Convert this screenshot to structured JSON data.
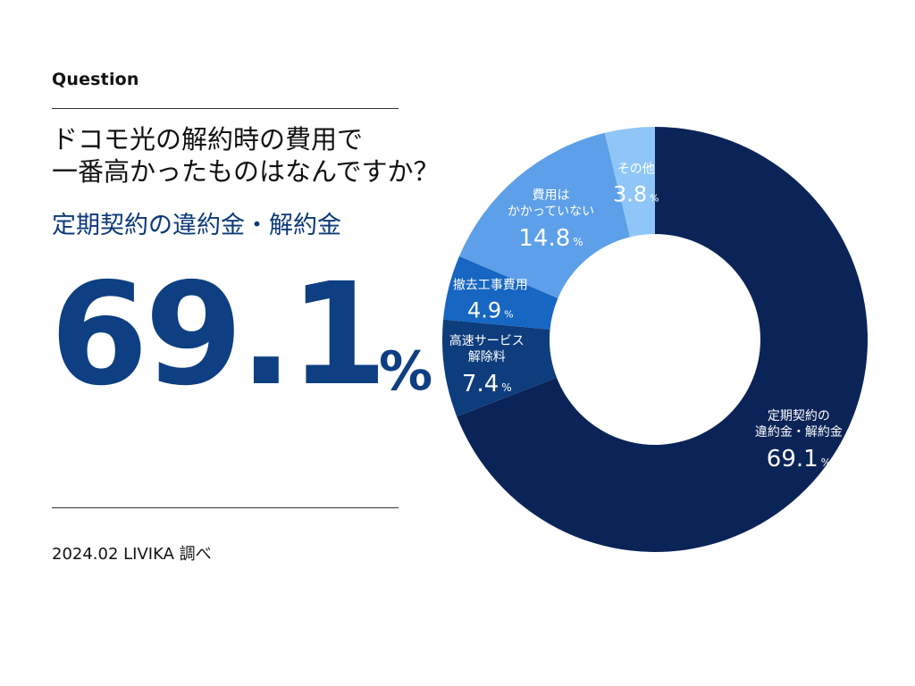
{
  "header": {
    "label": "Question",
    "question_line1": "ドコモ光の解約時の費用で",
    "question_line2": "一番高かったものはなんですか？",
    "answer_title": "定期契約の違約金・解約金",
    "big_value": "69.1",
    "big_unit": "%"
  },
  "footer": {
    "source": "2024.02 LIVIKA 調べ"
  },
  "colors": {
    "big_number": "#0d3f82",
    "answer_title": "#0b3a7a"
  },
  "chart_data": {
    "type": "pie",
    "style": "donut",
    "unit": "%",
    "slices": [
      {
        "name_lines": [
          "定期契約の",
          "違約金・解約金"
        ],
        "value": 69.1,
        "value_label": "69.1",
        "color": "#0b2458"
      },
      {
        "name_lines": [
          "高速サービス",
          "解除料"
        ],
        "value": 7.4,
        "value_label": "7.4",
        "color": "#0e3d7e"
      },
      {
        "name_lines": [
          "撤去工事費用"
        ],
        "value": 4.9,
        "value_label": "4.9",
        "color": "#1666c2"
      },
      {
        "name_lines": [
          "費用は",
          "かかっていない"
        ],
        "value": 14.8,
        "value_label": "14.8",
        "color": "#5d9fe8"
      },
      {
        "name_lines": [
          "その他"
        ],
        "value": 3.8,
        "value_label": "3.8",
        "color": "#8fc6f7"
      }
    ]
  }
}
